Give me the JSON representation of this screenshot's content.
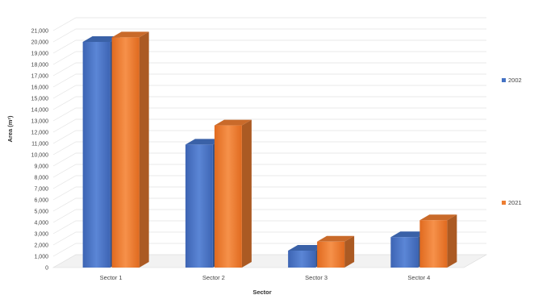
{
  "chart_data": {
    "type": "bar",
    "categories": [
      "Sector 1",
      "Sector 2",
      "Sector 3",
      "Sector 4"
    ],
    "series": [
      {
        "name": "2002",
        "values": [
          20000,
          10900,
          1500,
          2700
        ],
        "color": "#4472c4"
      },
      {
        "name": "2021",
        "values": [
          20400,
          12600,
          2300,
          4200
        ],
        "color": "#ed7d31"
      }
    ],
    "title": "",
    "xlabel": "Sector",
    "ylabel": "Area (m²)",
    "ylim": [
      0,
      21000
    ],
    "ytick_step": 1000,
    "grid": true,
    "legend_position": "right",
    "three_d": true
  }
}
